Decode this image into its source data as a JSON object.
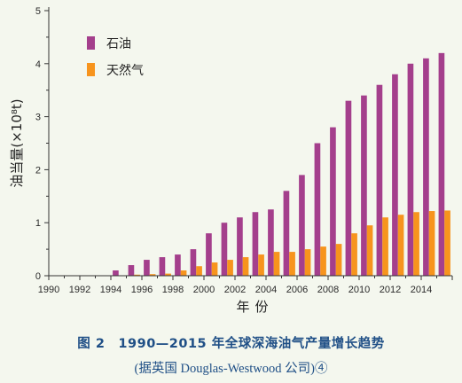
{
  "chart_data": {
    "type": "bar",
    "ylabel": "油当量(×10⁸t)",
    "xlabel": "年份",
    "ylim": [
      0,
      5
    ],
    "y_ticks": [
      "0",
      "1",
      "2",
      "3",
      "4",
      "5"
    ],
    "x_tick_labels": [
      "1990",
      "1992",
      "1994",
      "1996",
      "1998",
      "2000",
      "2002",
      "2004",
      "2006",
      "2008",
      "2010",
      "2012",
      "2014"
    ],
    "years": [
      1990,
      1991,
      1992,
      1993,
      1994,
      1995,
      1996,
      1997,
      1998,
      1999,
      2000,
      2001,
      2002,
      2003,
      2004,
      2005,
      2006,
      2007,
      2008,
      2009,
      2010,
      2011,
      2012,
      2013,
      2014,
      2015
    ],
    "series": [
      {
        "name": "石油",
        "color": "#a43f8c",
        "values": [
          0,
          0,
          0,
          0,
          0.1,
          0.2,
          0.3,
          0.35,
          0.4,
          0.5,
          0.8,
          1.0,
          1.1,
          1.2,
          1.25,
          1.6,
          1.9,
          2.5,
          2.8,
          3.3,
          3.4,
          3.6,
          3.8,
          4.0,
          4.1,
          4.2
        ]
      },
      {
        "name": "天然气",
        "color": "#f7941d",
        "values": [
          0,
          0,
          0,
          0,
          0,
          0.02,
          0.03,
          0.04,
          0.1,
          0.18,
          0.25,
          0.3,
          0.35,
          0.4,
          0.45,
          0.45,
          0.5,
          0.55,
          0.6,
          0.8,
          0.95,
          1.1,
          1.15,
          1.2,
          1.22,
          1.23
        ]
      }
    ],
    "legend_position": "top-left",
    "grid": false
  },
  "caption": {
    "title": "图 2　1990—2015 年全球深海油气产量增长趋势",
    "source": "(据英国 Douglas-Westwood 公司)④"
  }
}
